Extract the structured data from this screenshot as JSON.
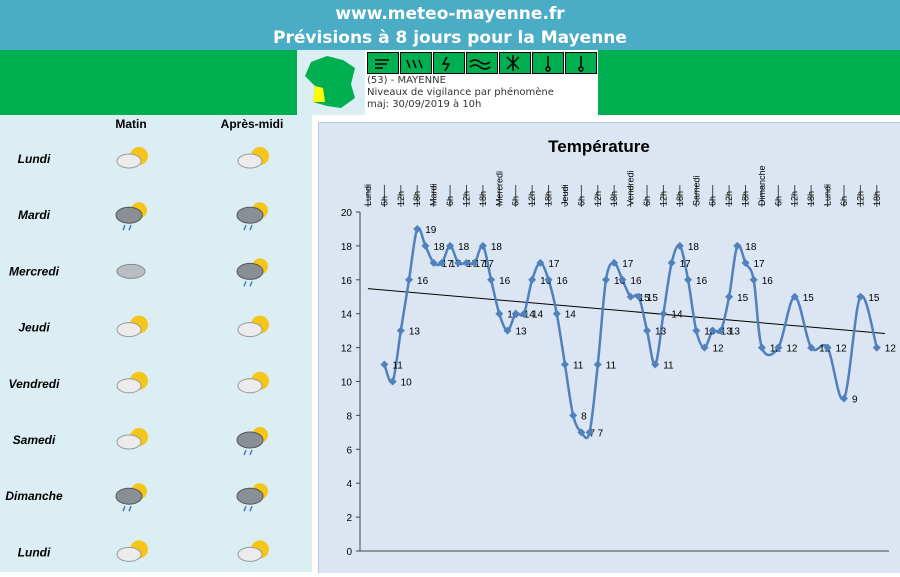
{
  "header": {
    "site": "www.meteo-mayenne.fr",
    "title": "Prévisions à 8 jours pour la Mayenne"
  },
  "vigilance": {
    "department": "(53) - MAYENNE",
    "subtitle": "Niveaux de vigilance par phénomène",
    "updated": "maj: 30/09/2019 à 10h"
  },
  "forecast": {
    "columns": [
      "Matin",
      "Après-midi"
    ],
    "days": [
      "Lundi",
      "Mardi",
      "Mercredi",
      "Jeudi",
      "Vendredi",
      "Samedi",
      "Dimanche",
      "Lundi"
    ]
  },
  "chart_data": {
    "type": "line",
    "title": "Température",
    "color": "#4f81bd",
    "trendline": true,
    "trendline_color": "#000000",
    "categories": [
      "Lundi",
      null,
      "6h",
      null,
      "12h",
      null,
      "18h",
      null,
      "Mardi",
      null,
      "6h",
      null,
      "12h",
      null,
      "18h",
      null,
      "Mercredi",
      null,
      "6h",
      null,
      "12h",
      null,
      "18h",
      null,
      "Jeudi",
      null,
      "6h",
      null,
      "12h",
      null,
      "18h",
      null,
      "Vendredi",
      null,
      "6h",
      null,
      "12h",
      null,
      "18h",
      null,
      "Samedi",
      null,
      "6h",
      null,
      "12h",
      null,
      "18h",
      null,
      "Dimanche",
      null,
      "6h",
      null,
      "12h",
      null,
      "18h",
      null,
      "Lundi",
      null,
      "6h",
      null,
      "12h",
      null,
      "18h",
      null
    ],
    "values": [
      null,
      null,
      11,
      10,
      13,
      16,
      19,
      18,
      17,
      17,
      18,
      17,
      17,
      17,
      18,
      16,
      14,
      13,
      14,
      14,
      16,
      17,
      16,
      14,
      11,
      8,
      7,
      7,
      11,
      16,
      17,
      16,
      15,
      15,
      13,
      11,
      14,
      17,
      18,
      16,
      13,
      12,
      13,
      13,
      15,
      18,
      17,
      16,
      12,
      null,
      12,
      null,
      15,
      null,
      12,
      null,
      12,
      null,
      9,
      null,
      15,
      null,
      12,
      null
    ],
    "ylim": [
      0,
      20
    ],
    "yticks": [
      0,
      2,
      4,
      6,
      8,
      10,
      12,
      14,
      16,
      18,
      20
    ]
  }
}
